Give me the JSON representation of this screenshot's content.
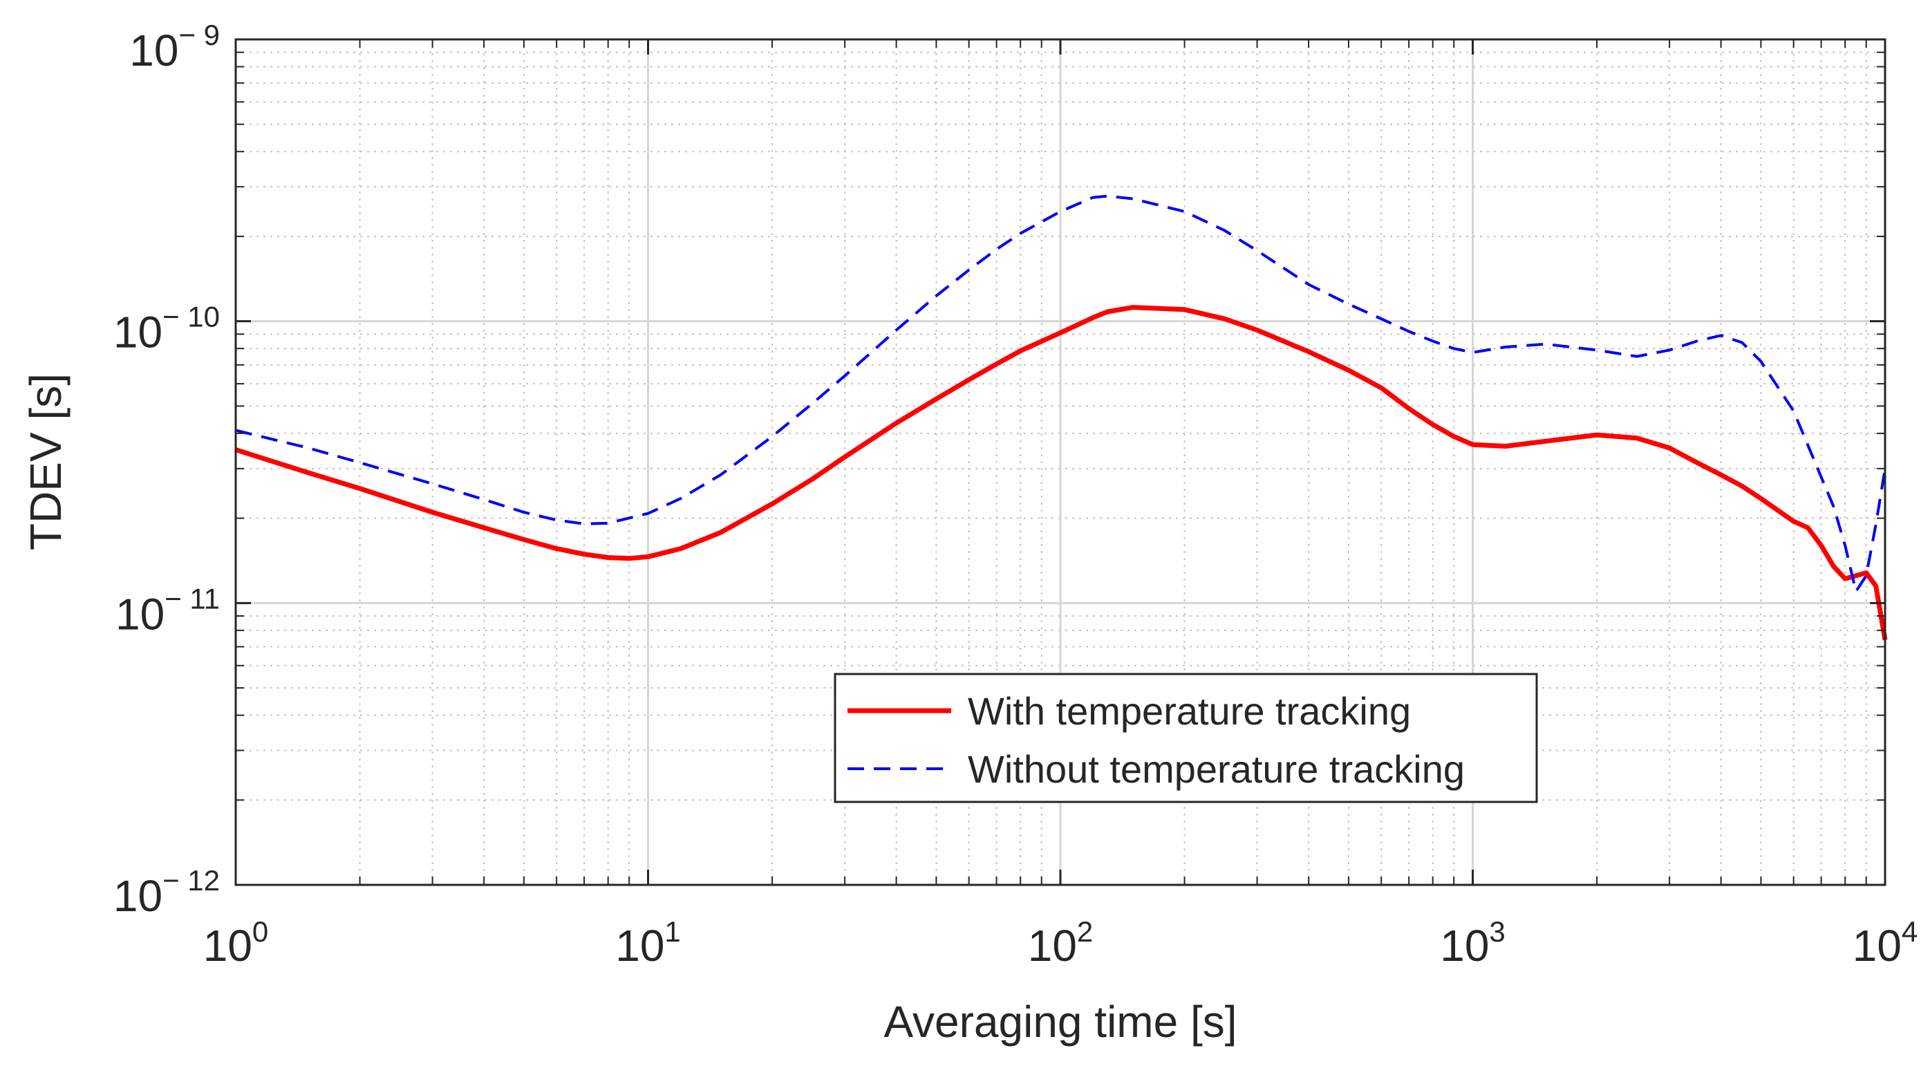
{
  "chart_data": {
    "type": "line",
    "title": "",
    "xlabel": "Averaging time [s]",
    "ylabel": "TDEV [s]",
    "xscale": "log",
    "yscale": "log",
    "xlim": [
      1,
      10000
    ],
    "ylim": [
      1e-12,
      1e-09
    ],
    "grid": true,
    "legend_position": "bottom-center",
    "x_ticks": [
      {
        "value": 1,
        "base": "10",
        "exp": "0"
      },
      {
        "value": 10,
        "base": "10",
        "exp": "1"
      },
      {
        "value": 100,
        "base": "10",
        "exp": "2"
      },
      {
        "value": 1000,
        "base": "10",
        "exp": "3"
      },
      {
        "value": 10000,
        "base": "10",
        "exp": "4"
      }
    ],
    "y_ticks": [
      {
        "value": 1e-12,
        "base": "10",
        "exp": "− 12"
      },
      {
        "value": 1e-11,
        "base": "10",
        "exp": "− 11"
      },
      {
        "value": 1e-10,
        "base": "10",
        "exp": "− 10"
      },
      {
        "value": 1e-09,
        "base": "10",
        "exp": "− 9"
      }
    ],
    "series": [
      {
        "name": "With temperature tracking",
        "color": "#ff0000",
        "style": "solid",
        "points": [
          [
            1,
            3.5e-11
          ],
          [
            1.5,
            2.9e-11
          ],
          [
            2,
            2.55e-11
          ],
          [
            3,
            2.1e-11
          ],
          [
            4,
            1.85e-11
          ],
          [
            5,
            1.68e-11
          ],
          [
            6,
            1.56e-11
          ],
          [
            7,
            1.49e-11
          ],
          [
            8,
            1.45e-11
          ],
          [
            9,
            1.44e-11
          ],
          [
            10,
            1.46e-11
          ],
          [
            12,
            1.56e-11
          ],
          [
            15,
            1.78e-11
          ],
          [
            20,
            2.25e-11
          ],
          [
            25,
            2.75e-11
          ],
          [
            30,
            3.3e-11
          ],
          [
            40,
            4.35e-11
          ],
          [
            50,
            5.3e-11
          ],
          [
            60,
            6.2e-11
          ],
          [
            70,
            7.05e-11
          ],
          [
            80,
            7.85e-11
          ],
          [
            100,
            9.1e-11
          ],
          [
            120,
            1.03e-10
          ],
          [
            130,
            1.08e-10
          ],
          [
            150,
            1.12e-10
          ],
          [
            200,
            1.1e-10
          ],
          [
            250,
            1.02e-10
          ],
          [
            300,
            9.3e-11
          ],
          [
            400,
            7.8e-11
          ],
          [
            500,
            6.7e-11
          ],
          [
            600,
            5.8e-11
          ],
          [
            700,
            4.9e-11
          ],
          [
            800,
            4.3e-11
          ],
          [
            900,
            3.9e-11
          ],
          [
            1000,
            3.65e-11
          ],
          [
            1200,
            3.6e-11
          ],
          [
            1500,
            3.75e-11
          ],
          [
            2000,
            3.95e-11
          ],
          [
            2500,
            3.85e-11
          ],
          [
            3000,
            3.55e-11
          ],
          [
            3500,
            3.15e-11
          ],
          [
            4000,
            2.85e-11
          ],
          [
            4500,
            2.6e-11
          ],
          [
            5000,
            2.35e-11
          ],
          [
            6000,
            1.95e-11
          ],
          [
            6500,
            1.85e-11
          ],
          [
            7000,
            1.6e-11
          ],
          [
            7500,
            1.35e-11
          ],
          [
            8000,
            1.22e-11
          ],
          [
            8500,
            1.25e-11
          ],
          [
            9000,
            1.28e-11
          ],
          [
            9500,
            1.15e-11
          ],
          [
            10000,
            7.4e-12
          ]
        ]
      },
      {
        "name": "Without temperature tracking",
        "color": "#0000ff",
        "style": "dashed",
        "points": [
          [
            1,
            4.1e-11
          ],
          [
            1.5,
            3.55e-11
          ],
          [
            2,
            3.15e-11
          ],
          [
            3,
            2.65e-11
          ],
          [
            4,
            2.33e-11
          ],
          [
            5,
            2.1e-11
          ],
          [
            6,
            1.97e-11
          ],
          [
            7,
            1.91e-11
          ],
          [
            8,
            1.92e-11
          ],
          [
            10,
            2.08e-11
          ],
          [
            12,
            2.35e-11
          ],
          [
            15,
            2.85e-11
          ],
          [
            20,
            3.9e-11
          ],
          [
            25,
            5.1e-11
          ],
          [
            30,
            6.4e-11
          ],
          [
            40,
            9.3e-11
          ],
          [
            50,
            1.23e-10
          ],
          [
            60,
            1.52e-10
          ],
          [
            70,
            1.8e-10
          ],
          [
            80,
            2.05e-10
          ],
          [
            100,
            2.45e-10
          ],
          [
            120,
            2.75e-10
          ],
          [
            130,
            2.78e-10
          ],
          [
            150,
            2.72e-10
          ],
          [
            200,
            2.45e-10
          ],
          [
            250,
            2.1e-10
          ],
          [
            300,
            1.78e-10
          ],
          [
            400,
            1.35e-10
          ],
          [
            500,
            1.15e-10
          ],
          [
            600,
            1.02e-10
          ],
          [
            700,
            9.2e-11
          ],
          [
            800,
            8.5e-11
          ],
          [
            900,
            8e-11
          ],
          [
            1000,
            7.75e-11
          ],
          [
            1200,
            8.1e-11
          ],
          [
            1500,
            8.3e-11
          ],
          [
            2000,
            7.9e-11
          ],
          [
            2500,
            7.5e-11
          ],
          [
            3000,
            7.9e-11
          ],
          [
            3500,
            8.5e-11
          ],
          [
            4000,
            8.9e-11
          ],
          [
            4500,
            8.4e-11
          ],
          [
            5000,
            7.2e-11
          ],
          [
            6000,
            4.8e-11
          ],
          [
            7000,
            2.8e-11
          ],
          [
            7500,
            2.2e-11
          ],
          [
            8000,
            1.6e-11
          ],
          [
            8500,
            1.1e-11
          ],
          [
            9000,
            1.25e-11
          ],
          [
            9500,
            1.9e-11
          ],
          [
            10000,
            3e-11
          ]
        ]
      }
    ]
  }
}
